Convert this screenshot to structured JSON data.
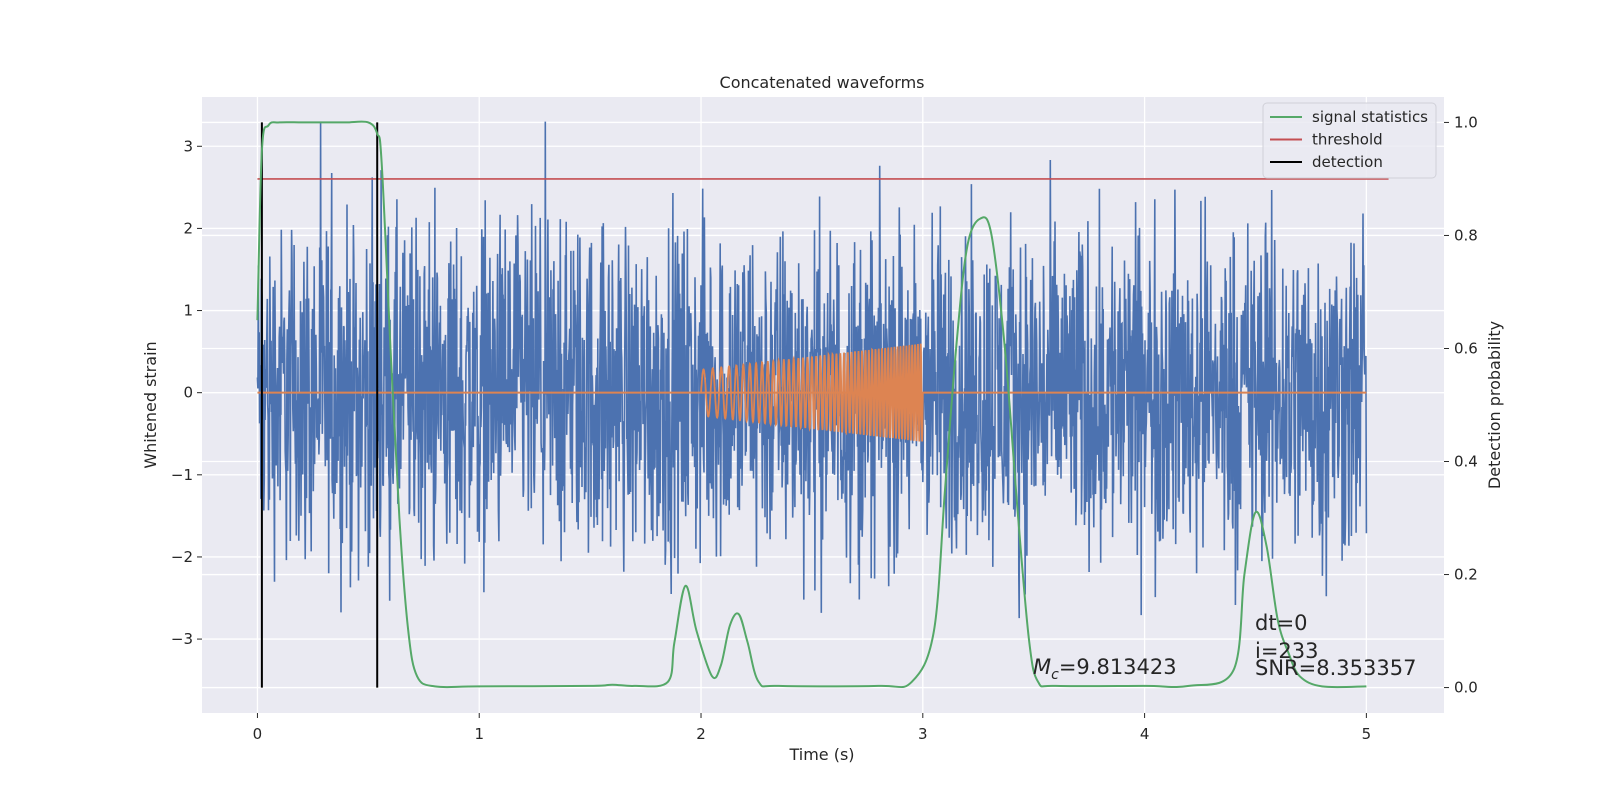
{
  "chart_data": {
    "type": "line",
    "title": "Concatenated waveforms",
    "xlabel": "Time (s)",
    "ylabel": "Whitened strain",
    "y2label": "Detection probability",
    "xlim": [
      -0.25,
      5.35
    ],
    "ylim": [
      -3.9,
      3.6
    ],
    "y2lim": [
      -0.045,
      1.045
    ],
    "xticks": [
      0,
      1,
      2,
      3,
      4,
      5
    ],
    "yticks": [
      -3,
      -2,
      -1,
      0,
      1,
      2,
      3
    ],
    "y2ticks": [
      0.0,
      0.2,
      0.4,
      0.6,
      0.8,
      1.0
    ],
    "xtick_labels": [
      "0",
      "1",
      "2",
      "3",
      "4",
      "5"
    ],
    "ytick_labels": [
      "−3",
      "−2",
      "−1",
      "0",
      "1",
      "2",
      "3"
    ],
    "y2tick_labels": [
      "0.0",
      "0.2",
      "0.4",
      "0.6",
      "0.8",
      "1.0"
    ],
    "grid": true,
    "legend_position": "top-right",
    "colors": {
      "strain": "#4c72b0",
      "template": "#dd8452",
      "signal_statistics": "#55a868",
      "threshold": "#c44e52",
      "detection": "#000000",
      "background": "#eaeaf2",
      "grid": "#ffffff"
    },
    "legend": [
      {
        "key": "signal_statistics",
        "label": "signal statistics"
      },
      {
        "key": "threshold",
        "label": "threshold"
      },
      {
        "key": "detection",
        "label": "detection"
      }
    ],
    "strain": {
      "x_start": 0,
      "x_end": 5,
      "envelope": 3.0,
      "peak": 3.3
    },
    "template": {
      "x_start": 2.0,
      "x_end": 3.0,
      "amp_start": 0.28,
      "amp_end": 0.6,
      "freq_start": 22,
      "freq_end": 80
    },
    "threshold": {
      "value": 0.9,
      "x_start": 0,
      "x_end": 5.1
    },
    "detections": [
      0.02,
      0.54
    ],
    "signal_statistics": {
      "x": [
        0,
        0.02,
        0.05,
        0.1,
        0.2,
        0.3,
        0.4,
        0.5,
        0.54,
        0.56,
        0.6,
        0.64,
        0.68,
        0.72,
        0.8,
        1.0,
        1.5,
        1.6,
        1.7,
        1.85,
        1.88,
        1.93,
        1.98,
        2.05,
        2.09,
        2.13,
        2.17,
        2.21,
        2.26,
        2.35,
        2.8,
        2.95,
        3.05,
        3.1,
        3.15,
        3.2,
        3.26,
        3.31,
        3.37,
        3.43,
        3.48,
        3.52,
        3.6,
        4.0,
        4.2,
        4.4,
        4.45,
        4.5,
        4.55,
        4.6,
        4.65,
        4.7,
        4.8,
        5.0
      ],
      "y": [
        0.65,
        0.95,
        0.995,
        1.0,
        1.0,
        1.0,
        1.0,
        1.0,
        0.98,
        0.93,
        0.6,
        0.3,
        0.1,
        0.02,
        0.002,
        0.002,
        0.003,
        0.005,
        0.003,
        0.01,
        0.08,
        0.18,
        0.1,
        0.02,
        0.04,
        0.11,
        0.13,
        0.08,
        0.01,
        0.003,
        0.003,
        0.01,
        0.1,
        0.35,
        0.6,
        0.78,
        0.83,
        0.8,
        0.6,
        0.3,
        0.08,
        0.01,
        0.003,
        0.003,
        0.003,
        0.03,
        0.2,
        0.31,
        0.25,
        0.12,
        0.06,
        0.02,
        0.002,
        0.002
      ]
    }
  },
  "annotations": {
    "mc_symbol": "M",
    "mc_sub": "c",
    "mc_value": "=9.813423",
    "dt": "dt=0",
    "i": "i=233",
    "snr": "SNR=8.353357"
  }
}
